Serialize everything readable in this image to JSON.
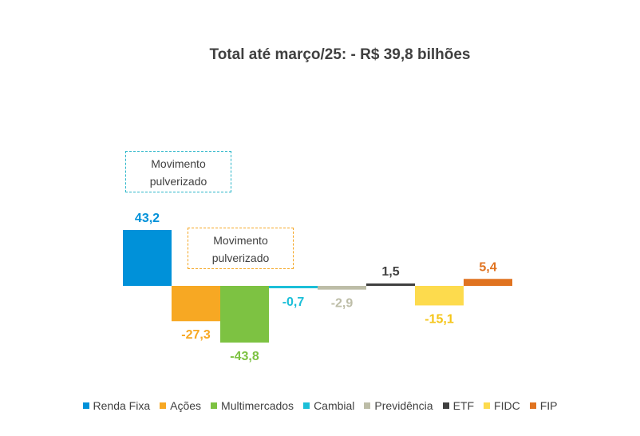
{
  "chart_data": {
    "type": "bar",
    "title": "Total até março/25: - R$ 39,8 bilhões",
    "categories": [
      "Renda Fixa",
      "Ações",
      "Multimercados",
      "Cambial",
      "Previdência",
      "ETF",
      "FIDC",
      "FIP"
    ],
    "values": [
      43.2,
      -27.3,
      -43.8,
      -0.7,
      -2.9,
      1.5,
      -15.1,
      5.4
    ],
    "value_labels": [
      "43,2",
      "-27,3",
      "-43,8",
      "-0,7",
      "-2,9",
      "1,5",
      "-15,1",
      "5,4"
    ],
    "colors": [
      "#0091D9",
      "#F7A823",
      "#7DC242",
      "#1BBFD8",
      "#BDBDA7",
      "#404040",
      "#FDDB4D",
      "#E07320"
    ],
    "ylim": [
      -50,
      50
    ],
    "legend_position": "bottom",
    "grid": false,
    "annotations": [
      "Movimento pulverizado",
      "Movimento pulverizado"
    ]
  }
}
